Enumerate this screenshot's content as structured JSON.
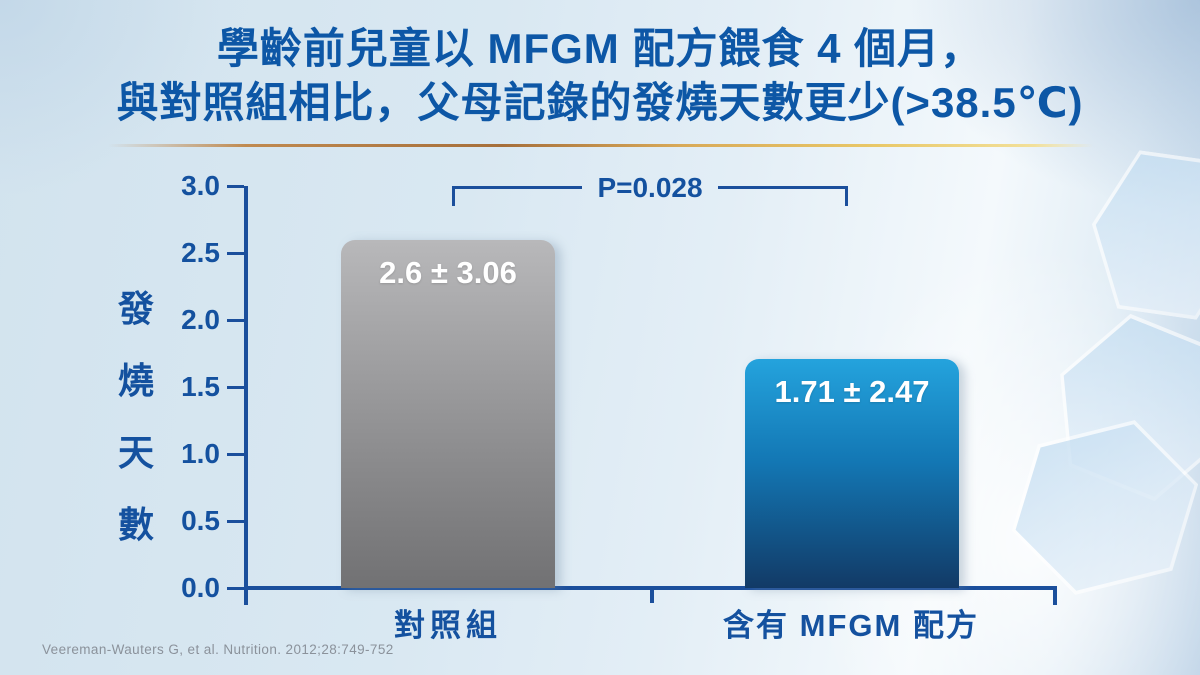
{
  "header": {
    "title_line1": "學齡前兒童以 MFGM 配方餵食 4 個月，",
    "title_line2": "與對照組相比，父母記錄的發燒天數更少(>38.5℃)"
  },
  "chart_data": {
    "type": "bar",
    "title": "學齡前兒童以 MFGM 配方餵食 4 個月，與對照組相比，父母記錄的發燒天數更少(>38.5℃)",
    "categories": [
      "對照組",
      "含有 MFGM 配方"
    ],
    "values": [
      2.6,
      1.71
    ],
    "std_devs": [
      3.06,
      2.47
    ],
    "bar_labels": [
      "2.6 ± 3.06",
      "1.71 ± 2.47"
    ],
    "bar_colors": [
      {
        "top": "#b8b8ba",
        "bottom": "#717173"
      },
      {
        "top": "#24a3dd",
        "mid": "#1377b4",
        "bottom": "#123a66"
      }
    ],
    "xlabel": "",
    "ylabel": "發燒天數",
    "ylabel_chars": [
      "發",
      "燒",
      "天",
      "數"
    ],
    "ylim": [
      0.0,
      3.0
    ],
    "ytick_labels": [
      "3.0",
      "2.5",
      "2.0",
      "1.5",
      "1.0",
      "0.5",
      "0.0"
    ],
    "grid": false,
    "legend": false,
    "annotation": "P=0.028"
  },
  "footer": {
    "citation": "Veereman-Wauters G, et al. Nutrition. 2012;28:749-752"
  },
  "colors": {
    "title_blue": "#0d57a6",
    "axis_blue": "#1b4f9c",
    "label_blue": "#14519f",
    "citation_gray": "#8b929b",
    "gold_line": "#c99a4e",
    "background": "#d9e8f2"
  }
}
